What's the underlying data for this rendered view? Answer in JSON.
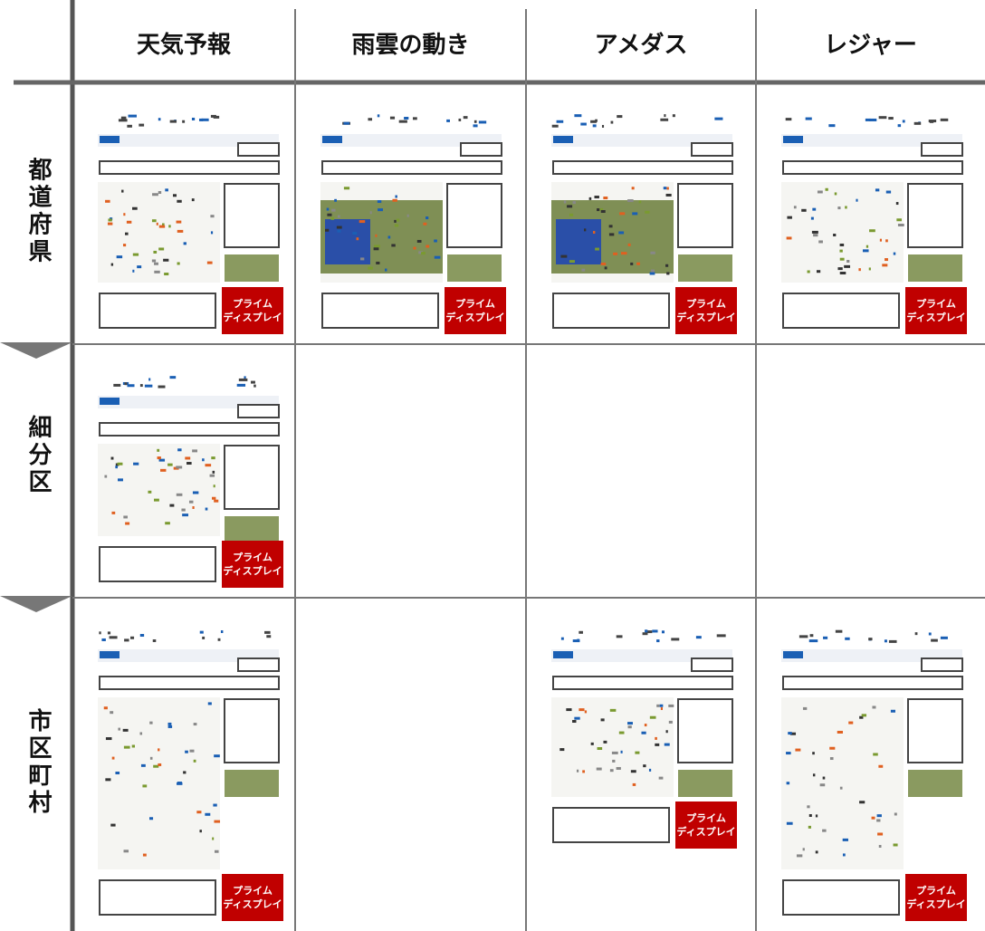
{
  "columns": [
    "天気予報",
    "雨雲の動き",
    "アメダス",
    "レジャー"
  ],
  "rows": [
    {
      "label": "都道府県",
      "cells": [
        [
          "プライム",
          "ディスプレイ"
        ],
        [
          "プライム",
          "ディスプレイ"
        ],
        [
          "プライム",
          "ディスプレイ"
        ],
        [
          "プライム",
          "ディスプレイ"
        ]
      ]
    },
    {
      "label": "細分区",
      "cells": [
        [
          "プライム",
          "ディスプレイ"
        ],
        null,
        null,
        null
      ]
    },
    {
      "label": "市区町村",
      "cells": [
        [
          "プライム",
          "ディスプレイ"
        ],
        null,
        [
          "プライム",
          "ディスプレイ"
        ],
        [
          "プライム",
          "ディスプレイ"
        ]
      ]
    }
  ]
}
